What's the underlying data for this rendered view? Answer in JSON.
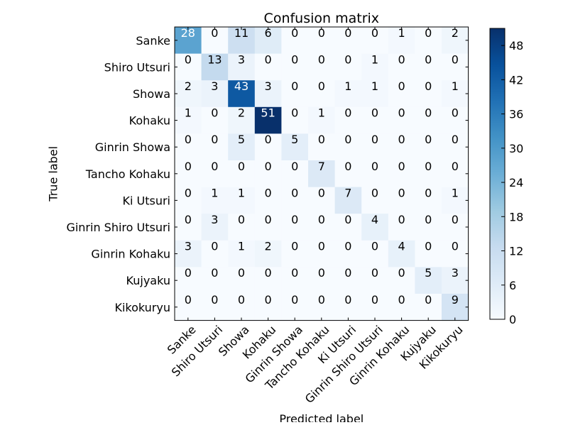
{
  "chart_data": {
    "type": "heatmap",
    "title": "Confusion matrix",
    "xlabel": "Predicted label",
    "ylabel": "True label",
    "labels": [
      "Sanke",
      "Shiro Utsuri",
      "Showa",
      "Kohaku",
      "Ginrin Showa",
      "Tancho Kohaku",
      "Ki Utsuri",
      "Ginrin Shiro Utsuri",
      "Ginrin Kohaku",
      "Kujyaku",
      "Kikokuryu"
    ],
    "matrix": [
      [
        28,
        0,
        11,
        6,
        0,
        0,
        0,
        0,
        1,
        0,
        2
      ],
      [
        0,
        13,
        3,
        0,
        0,
        0,
        0,
        1,
        0,
        0,
        0
      ],
      [
        2,
        3,
        43,
        3,
        0,
        0,
        1,
        1,
        0,
        0,
        1
      ],
      [
        1,
        0,
        2,
        51,
        0,
        1,
        0,
        0,
        0,
        0,
        0
      ],
      [
        0,
        0,
        5,
        0,
        5,
        0,
        0,
        0,
        0,
        0,
        0
      ],
      [
        0,
        0,
        0,
        0,
        0,
        7,
        0,
        0,
        0,
        0,
        0
      ],
      [
        0,
        1,
        1,
        0,
        0,
        0,
        7,
        0,
        0,
        0,
        1
      ],
      [
        0,
        3,
        0,
        0,
        0,
        0,
        0,
        4,
        0,
        0,
        0
      ],
      [
        3,
        0,
        1,
        2,
        0,
        0,
        0,
        0,
        4,
        0,
        0
      ],
      [
        0,
        0,
        0,
        0,
        0,
        0,
        0,
        0,
        0,
        5,
        3
      ],
      [
        0,
        0,
        0,
        0,
        0,
        0,
        0,
        0,
        0,
        0,
        9
      ]
    ],
    "colormap": "Blues",
    "colormap_stops": [
      "#f7fbff",
      "#deebf7",
      "#c6dbef",
      "#9ecae1",
      "#6baed6",
      "#4292c6",
      "#2171b5",
      "#08519c",
      "#08306b"
    ],
    "colorbar": {
      "min": 0,
      "max": 51,
      "ticks": [
        0,
        6,
        12,
        18,
        24,
        30,
        36,
        42,
        48
      ]
    },
    "text_colors": {
      "dark": "#000000",
      "light": "#ffffff"
    },
    "grid": false
  }
}
